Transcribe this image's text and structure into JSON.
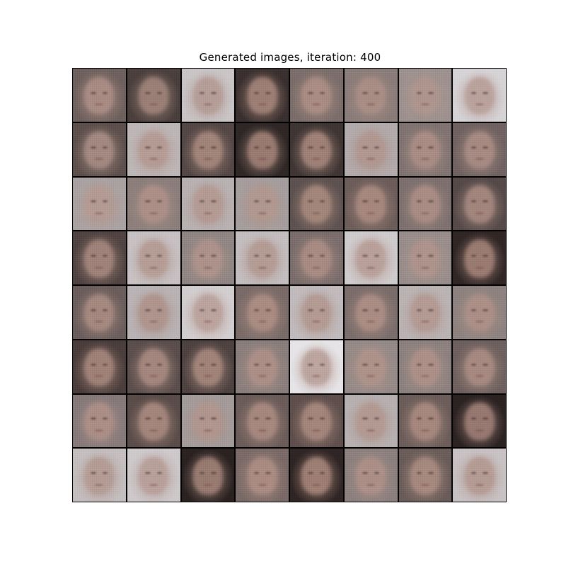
{
  "figure": {
    "title": "Generated images, iteration: 400"
  },
  "grid": {
    "rows": 8,
    "cols": 8,
    "tiles": [
      {
        "bg": "#6e605d",
        "face": "#a88b83"
      },
      {
        "bg": "#4a3f3d",
        "face": "#9a7f76"
      },
      {
        "bg": "#c9c4c6",
        "face": "#b59d97"
      },
      {
        "bg": "#3a302f",
        "face": "#9c7e74"
      },
      {
        "bg": "#7b6d6a",
        "face": "#a98c83"
      },
      {
        "bg": "#8a7c79",
        "face": "#a88d85"
      },
      {
        "bg": "#9d918f",
        "face": "#ad958e"
      },
      {
        "bg": "#d6d3d6",
        "face": "#baa29c"
      },
      {
        "bg": "#5d4f4c",
        "face": "#a28880"
      },
      {
        "bg": "#bdb6b7",
        "face": "#b49b94"
      },
      {
        "bg": "#544745",
        "face": "#a08379"
      },
      {
        "bg": "#2e2726",
        "face": "#987a70"
      },
      {
        "bg": "#3f3533",
        "face": "#9e8077"
      },
      {
        "bg": "#b2aaab",
        "face": "#b09790"
      },
      {
        "bg": "#807371",
        "face": "#a88c84"
      },
      {
        "bg": "#6f6261",
        "face": "#a68a82"
      },
      {
        "bg": "#aaa2a2",
        "face": "#b39a93"
      },
      {
        "bg": "#8b7e7b",
        "face": "#ab8f87"
      },
      {
        "bg": "#b8b1b2",
        "face": "#b39a93"
      },
      {
        "bg": "#a59d9d",
        "face": "#b0978f"
      },
      {
        "bg": "#5e5250",
        "face": "#a28579"
      },
      {
        "bg": "#6d5d5a",
        "face": "#a5877d"
      },
      {
        "bg": "#7d706e",
        "face": "#a88c84"
      },
      {
        "bg": "#564a49",
        "face": "#a1857c"
      },
      {
        "bg": "#504341",
        "face": "#9f8279"
      },
      {
        "bg": "#c7c1c3",
        "face": "#b59d96"
      },
      {
        "bg": "#8f8583",
        "face": "#ac928a"
      },
      {
        "bg": "#c3bdbf",
        "face": "#b49c95"
      },
      {
        "bg": "#7a6d6b",
        "face": "#a88b83"
      },
      {
        "bg": "#cfcacc",
        "face": "#b9a09a"
      },
      {
        "bg": "#988d8b",
        "face": "#ad938b"
      },
      {
        "bg": "#2f2625",
        "face": "#9a7b71"
      },
      {
        "bg": "#6a5d5b",
        "face": "#a4887f"
      },
      {
        "bg": "#b9b3b5",
        "face": "#ae948c"
      },
      {
        "bg": "#d2cdcf",
        "face": "#bba39d"
      },
      {
        "bg": "#7a6b68",
        "face": "#a98b82"
      },
      {
        "bg": "#c0babc",
        "face": "#b39a93"
      },
      {
        "bg": "#7b6d6b",
        "face": "#a98c83"
      },
      {
        "bg": "#bab3b4",
        "face": "#b39a93"
      },
      {
        "bg": "#8d827f",
        "face": "#ab8f87"
      },
      {
        "bg": "#4a3d3b",
        "face": "#9f8178"
      },
      {
        "bg": "#5b4e4c",
        "face": "#a3867d"
      },
      {
        "bg": "#4e4241",
        "face": "#a18379"
      },
      {
        "bg": "#8a7e7c",
        "face": "#ab8f87"
      },
      {
        "bg": "#e6e4e7",
        "face": "#bca59f"
      },
      {
        "bg": "#958a88",
        "face": "#ad928a"
      },
      {
        "bg": "#8c817f",
        "face": "#ac9088"
      },
      {
        "bg": "#6d605e",
        "face": "#a68980"
      },
      {
        "bg": "#85797a",
        "face": "#aa8e86"
      },
      {
        "bg": "#5a4c49",
        "face": "#a3857b"
      },
      {
        "bg": "#a39a9a",
        "face": "#af958d"
      },
      {
        "bg": "#6b5c59",
        "face": "#a5877e"
      },
      {
        "bg": "#5f4f4c",
        "face": "#a3857b"
      },
      {
        "bg": "#b7b0b1",
        "face": "#b29991"
      },
      {
        "bg": "#6c5d5a",
        "face": "#a5877d"
      },
      {
        "bg": "#2b2222",
        "face": "#967870"
      },
      {
        "bg": "#c4bebf",
        "face": "#b49c95"
      },
      {
        "bg": "#cdc8ca",
        "face": "#b8a09a"
      },
      {
        "bg": "#2a2221",
        "face": "#977a70"
      },
      {
        "bg": "#7a6a67",
        "face": "#a98b82"
      },
      {
        "bg": "#2f2524",
        "face": "#9d7e73"
      },
      {
        "bg": "#8b807e",
        "face": "#ab8f87"
      },
      {
        "bg": "#6a5c59",
        "face": "#a5887e"
      },
      {
        "bg": "#c8c2c4",
        "face": "#b49b94"
      }
    ]
  }
}
